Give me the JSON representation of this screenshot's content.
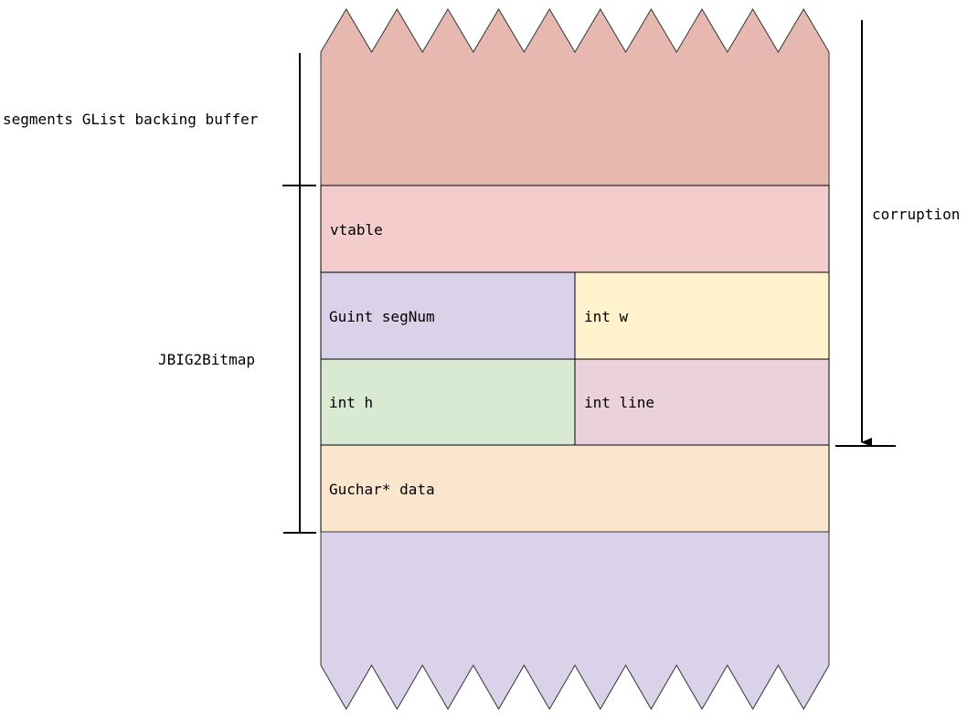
{
  "labels": {
    "segments": "segments GList backing buffer",
    "jbig2bitmap": "JBIG2Bitmap",
    "corruption": "corruption"
  },
  "fields": {
    "vtable": "vtable",
    "segnum": "Guint segNum",
    "w": "int w",
    "h": "int h",
    "line": "int line",
    "data": "Guchar* data"
  },
  "colors": {
    "segments_buffer": "#e6b8af",
    "vtable": "#f4cccc",
    "segnum": "#d9d2e9",
    "w": "#fff2cc",
    "h": "#d9ead3",
    "line": "#ead1dc",
    "data": "#fce5cd",
    "below": "#d9d2e9"
  }
}
